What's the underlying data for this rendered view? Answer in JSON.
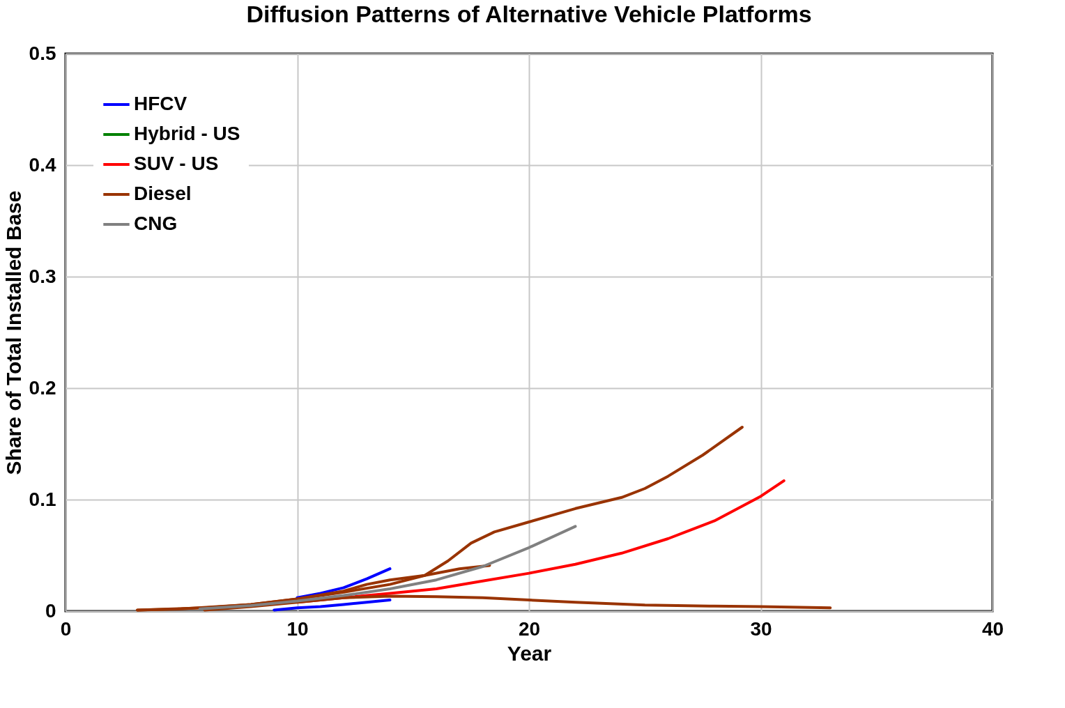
{
  "chart_data": {
    "type": "line",
    "title": "Diffusion Patterns of Alternative Vehicle Platforms",
    "xlabel": "Year",
    "ylabel": "Share of Total Installed Base",
    "xlim": [
      0,
      40
    ],
    "xticks": [
      0,
      10,
      20,
      30,
      40
    ],
    "ylim": [
      0,
      0.5
    ],
    "yticks": [
      0,
      0.1,
      0.2,
      0.3,
      0.4,
      0.5
    ],
    "grid": true,
    "legend": "top left",
    "line_style": "solid",
    "marker": "none",
    "series": [
      {
        "name": "HFCV",
        "color": "#0000ff",
        "x": [
          10,
          11,
          12,
          13,
          14
        ],
        "values": [
          0.012,
          0.016,
          0.021,
          0.029,
          0.038
        ]
      },
      {
        "color": "#0000ff",
        "x": [
          9,
          10,
          11,
          12,
          13,
          14
        ],
        "values": [
          0.001,
          0.003,
          0.004,
          0.006,
          0.008,
          0.01
        ]
      },
      {
        "name": "Hybrid - US",
        "color": "#008000"
      },
      {
        "name": "SUV - US",
        "color": "#ff0000",
        "x": [
          10,
          12,
          14,
          16,
          18,
          20,
          22,
          24,
          26,
          28,
          30,
          31
        ],
        "values": [
          0.008,
          0.012,
          0.016,
          0.02,
          0.027,
          0.034,
          0.042,
          0.052,
          0.065,
          0.081,
          0.103,
          0.117
        ]
      },
      {
        "name": "Diesel",
        "color": "#993300",
        "x": [
          3.1,
          5,
          8,
          10,
          12,
          14,
          15.5,
          16.5,
          17.5,
          18.5,
          20,
          22,
          24,
          25,
          26,
          27.5,
          29.2
        ],
        "values": [
          0.001,
          0.002,
          0.006,
          0.011,
          0.017,
          0.024,
          0.032,
          0.045,
          0.061,
          0.071,
          0.08,
          0.092,
          0.102,
          0.11,
          0.121,
          0.14,
          0.165
        ]
      },
      {
        "color": "#993300",
        "x": [
          3.1,
          6,
          8,
          10,
          12,
          13,
          14,
          15.5,
          17,
          18.3
        ],
        "values": [
          0.001,
          0.003,
          0.006,
          0.011,
          0.018,
          0.024,
          0.028,
          0.032,
          0.038,
          0.041
        ]
      },
      {
        "color": "#993300",
        "x": [
          6,
          8,
          10,
          12,
          14,
          16,
          18,
          20,
          22,
          25,
          28,
          30,
          33
        ],
        "values": [
          0.001,
          0.004,
          0.008,
          0.012,
          0.0135,
          0.013,
          0.012,
          0.01,
          0.008,
          0.0055,
          0.0045,
          0.004,
          0.003
        ]
      },
      {
        "name": "CNG",
        "color": "#808080",
        "x": [
          5.8,
          8,
          10,
          12,
          14,
          16,
          18,
          20,
          22
        ],
        "values": [
          0.002,
          0.005,
          0.009,
          0.014,
          0.02,
          0.028,
          0.04,
          0.057,
          0.076
        ]
      }
    ]
  }
}
